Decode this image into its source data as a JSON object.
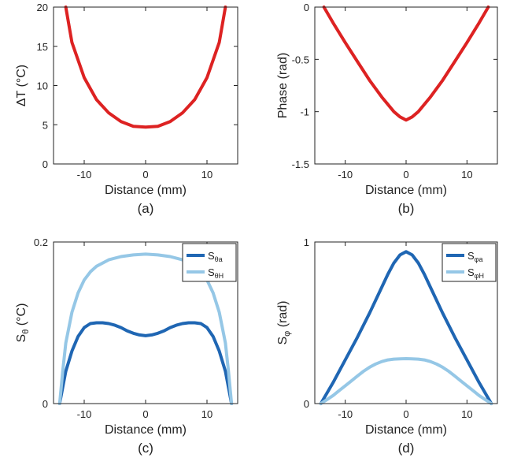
{
  "colors": {
    "red": "#dd2222",
    "dark_blue": "#1f66b3",
    "light_blue": "#95c7e6",
    "axis": "#222222"
  },
  "chart_data": [
    {
      "panel_label": "(a)",
      "type": "line",
      "xlabel": "Distance (mm)",
      "ylabel": "ΔT (°C)",
      "xlim": [
        -15,
        15
      ],
      "ylim": [
        0,
        20
      ],
      "xticks": [
        -10,
        0,
        10
      ],
      "yticks": [
        0,
        5,
        10,
        15,
        20
      ],
      "xtick_labels": [
        "-10",
        "0",
        "10"
      ],
      "ytick_labels": [
        "0",
        "5",
        "10",
        "15",
        "20"
      ],
      "series": [
        {
          "color": "#dd2222",
          "x": [
            -13,
            -12,
            -10,
            -8,
            -6,
            -4,
            -2,
            0,
            2,
            4,
            6,
            8,
            10,
            12,
            13
          ],
          "y": [
            20,
            15.5,
            11.0,
            8.2,
            6.5,
            5.4,
            4.8,
            4.7,
            4.8,
            5.4,
            6.5,
            8.2,
            11.0,
            15.5,
            20
          ]
        }
      ]
    },
    {
      "panel_label": "(b)",
      "type": "line",
      "xlabel": "Distance (mm)",
      "ylabel": "Phase (rad)",
      "xlim": [
        -15,
        15
      ],
      "ylim": [
        -1.5,
        0
      ],
      "xticks": [
        -10,
        0,
        10
      ],
      "yticks": [
        -1.5,
        -1,
        -0.5,
        0
      ],
      "xtick_labels": [
        "-10",
        "0",
        "10"
      ],
      "ytick_labels": [
        "-1.5",
        "-1",
        "-0.5",
        "0"
      ],
      "series": [
        {
          "color": "#dd2222",
          "x": [
            -13.5,
            -12,
            -10,
            -8,
            -6,
            -4,
            -2,
            -1,
            0,
            1,
            2,
            4,
            6,
            8,
            10,
            12,
            13.5
          ],
          "y": [
            0,
            -0.15,
            -0.34,
            -0.52,
            -0.7,
            -0.86,
            -1.0,
            -1.05,
            -1.08,
            -1.05,
            -1.0,
            -0.86,
            -0.7,
            -0.52,
            -0.34,
            -0.15,
            0
          ]
        }
      ]
    },
    {
      "panel_label": "(c)",
      "type": "line",
      "xlabel": "Distance (mm)",
      "ylabel": "Sθ (°C)",
      "ylabel_main": "S",
      "ylabel_sub": "θ",
      "ylabel_rest": " (°C)",
      "xlim": [
        -15,
        15
      ],
      "ylim": [
        0,
        0.2
      ],
      "xticks": [
        -10,
        0,
        10
      ],
      "yticks": [
        0,
        0.2
      ],
      "xtick_labels": [
        "-10",
        "0",
        "10"
      ],
      "ytick_labels": [
        "0",
        "0.2"
      ],
      "legend_position": "top-right",
      "series": [
        {
          "name": "Sθa",
          "name_main": "S",
          "name_sub": "θa",
          "color": "#1f66b3",
          "x": [
            -14,
            -13.5,
            -13,
            -12,
            -11,
            -10,
            -9,
            -8,
            -7,
            -6,
            -5,
            -4,
            -3,
            -2,
            -1,
            0,
            1,
            2,
            3,
            4,
            5,
            6,
            7,
            8,
            9,
            10,
            11,
            12,
            13,
            13.5,
            14
          ],
          "y": [
            0,
            0.02,
            0.04,
            0.065,
            0.083,
            0.094,
            0.099,
            0.1,
            0.1,
            0.099,
            0.097,
            0.094,
            0.09,
            0.087,
            0.085,
            0.084,
            0.085,
            0.087,
            0.09,
            0.094,
            0.097,
            0.099,
            0.1,
            0.1,
            0.099,
            0.094,
            0.083,
            0.065,
            0.04,
            0.02,
            0
          ]
        },
        {
          "name": "SθH",
          "name_main": "S",
          "name_sub": "θH",
          "color": "#95c7e6",
          "x": [
            -14,
            -13.5,
            -13,
            -12,
            -11,
            -10,
            -9,
            -8,
            -6,
            -4,
            -2,
            0,
            2,
            4,
            6,
            8,
            9,
            10,
            11,
            12,
            13,
            13.5,
            14
          ],
          "y": [
            0,
            0.04,
            0.075,
            0.113,
            0.137,
            0.153,
            0.163,
            0.17,
            0.178,
            0.182,
            0.184,
            0.185,
            0.184,
            0.182,
            0.178,
            0.17,
            0.163,
            0.153,
            0.137,
            0.113,
            0.075,
            0.04,
            0
          ]
        }
      ]
    },
    {
      "panel_label": "(d)",
      "type": "line",
      "xlabel": "Distance (mm)",
      "ylabel": "Sφ (rad)",
      "ylabel_main": "S",
      "ylabel_sub": "φ",
      "ylabel_rest": " (rad)",
      "xlim": [
        -15,
        15
      ],
      "ylim": [
        0,
        1
      ],
      "xticks": [
        -10,
        0,
        10
      ],
      "yticks": [
        0,
        1
      ],
      "xtick_labels": [
        "-10",
        "0",
        "10"
      ],
      "ytick_labels": [
        "0",
        "1"
      ],
      "legend_position": "top-right",
      "series": [
        {
          "name": "Sφa",
          "name_main": "S",
          "name_sub": "φa",
          "color": "#1f66b3",
          "x": [
            -14,
            -12,
            -10,
            -8,
            -6,
            -4,
            -3,
            -2,
            -1,
            0,
            1,
            2,
            3,
            4,
            6,
            8,
            10,
            12,
            14
          ],
          "y": [
            0,
            0.13,
            0.27,
            0.41,
            0.56,
            0.72,
            0.8,
            0.87,
            0.92,
            0.94,
            0.92,
            0.87,
            0.8,
            0.72,
            0.56,
            0.41,
            0.27,
            0.13,
            0
          ]
        },
        {
          "name": "SφH",
          "name_main": "S",
          "name_sub": "φH",
          "color": "#95c7e6",
          "x": [
            -14,
            -13,
            -12,
            -11,
            -10,
            -9,
            -8,
            -7,
            -6,
            -5,
            -4,
            -3,
            -2,
            -1,
            0,
            1,
            2,
            3,
            4,
            5,
            6,
            7,
            8,
            9,
            10,
            11,
            12,
            13,
            14
          ],
          "y": [
            0,
            0.025,
            0.05,
            0.08,
            0.11,
            0.14,
            0.17,
            0.2,
            0.225,
            0.245,
            0.26,
            0.27,
            0.275,
            0.277,
            0.278,
            0.277,
            0.275,
            0.27,
            0.26,
            0.245,
            0.225,
            0.2,
            0.17,
            0.14,
            0.11,
            0.08,
            0.05,
            0.025,
            0
          ]
        }
      ]
    }
  ]
}
